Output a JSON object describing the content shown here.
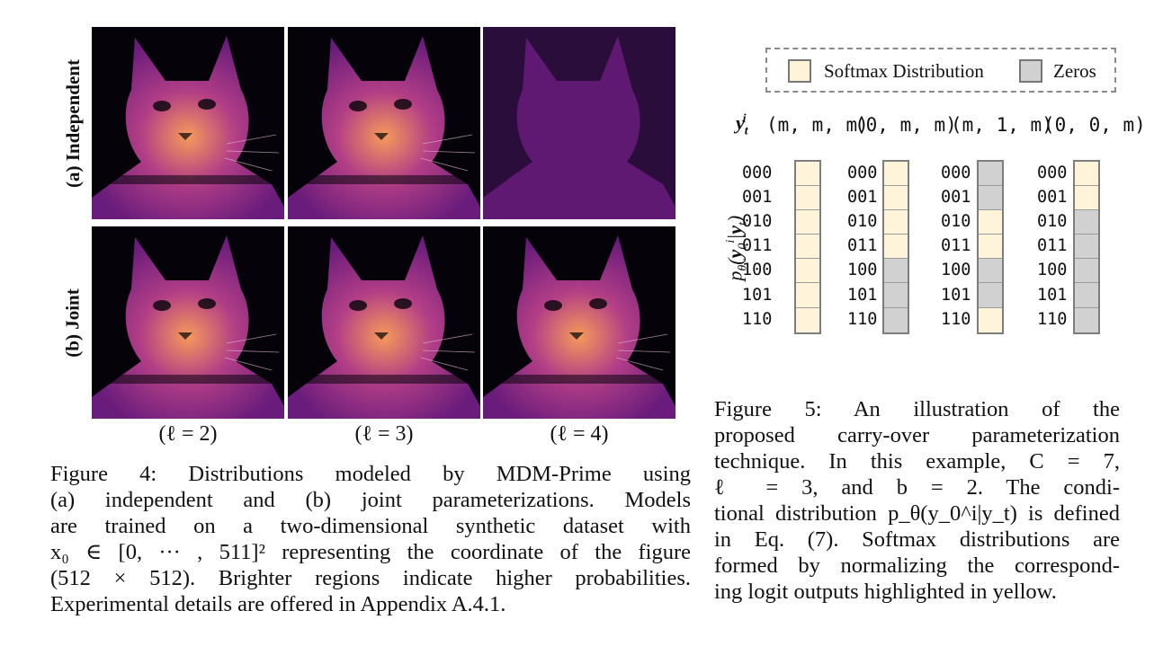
{
  "figure4": {
    "row_labels": [
      "(a) Independent",
      "(b) Joint"
    ],
    "col_labels": [
      "(ℓ = 2)",
      "(ℓ = 3)",
      "(ℓ = 4)"
    ],
    "panels": [
      {
        "row": 0,
        "col": 0,
        "description": "cat-density-sharp"
      },
      {
        "row": 0,
        "col": 1,
        "description": "cat-density-sharp"
      },
      {
        "row": 0,
        "col": 2,
        "description": "cat-density-blurred"
      },
      {
        "row": 1,
        "col": 0,
        "description": "cat-density-sharp"
      },
      {
        "row": 1,
        "col": 1,
        "description": "cat-density-sharp"
      },
      {
        "row": 1,
        "col": 2,
        "description": "cat-density-sharp"
      }
    ],
    "caption_lines": [
      "Figure 4: Distributions modeled by MDM-Prime using",
      "(a) independent and (b) joint parameterizations. Models",
      "are trained on a two-dimensional synthetic dataset with",
      "x₀ ∈ [0, ··· , 511]² representing the coordinate of the figure",
      "(512 × 512). Brighter regions indicate higher probabilities.",
      "Experimental details are offered in Appendix A.4.1."
    ],
    "colors": {
      "dark": "#050309",
      "mid": "#6a1c7c",
      "bright": "#f59a5a"
    }
  },
  "figure5": {
    "legend": {
      "softmax_label": "Softmax Distribution",
      "zeros_label": "Zeros"
    },
    "colors": {
      "softmax": "#fff4d9",
      "zeros": "#d1d1d1",
      "border": "#7d7d7d"
    },
    "yt_label": "y_t^i",
    "ylabel": "p_θ(y_0^i | y_t)",
    "columns": [
      {
        "header": "(m, m, m)",
        "cells": [
          "softmax",
          "softmax",
          "softmax",
          "softmax",
          "softmax",
          "softmax",
          "softmax"
        ]
      },
      {
        "header": "(0, m, m)",
        "cells": [
          "softmax",
          "softmax",
          "softmax",
          "softmax",
          "zeros",
          "zeros",
          "zeros"
        ]
      },
      {
        "header": "(m, 1, m)",
        "cells": [
          "zeros",
          "zeros",
          "softmax",
          "softmax",
          "zeros",
          "zeros",
          "softmax"
        ]
      },
      {
        "header": "(0, 0, m)",
        "cells": [
          "softmax",
          "softmax",
          "zeros",
          "zeros",
          "zeros",
          "zeros",
          "zeros"
        ]
      }
    ],
    "bins": [
      "000",
      "001",
      "010",
      "011",
      "100",
      "101",
      "110"
    ],
    "caption_lines": [
      "Figure 5: An illustration of the",
      "proposed carry-over parameterization",
      "technique. In this example, C = 7,",
      "ℓ = 3, and b = 2. The condi-",
      "tional distribution p_θ(y_0^i|y_t) is defined",
      "in Eq. (7). Softmax distributions are",
      "formed by normalizing the correspond-",
      "ing logit outputs highlighted in yellow."
    ]
  }
}
